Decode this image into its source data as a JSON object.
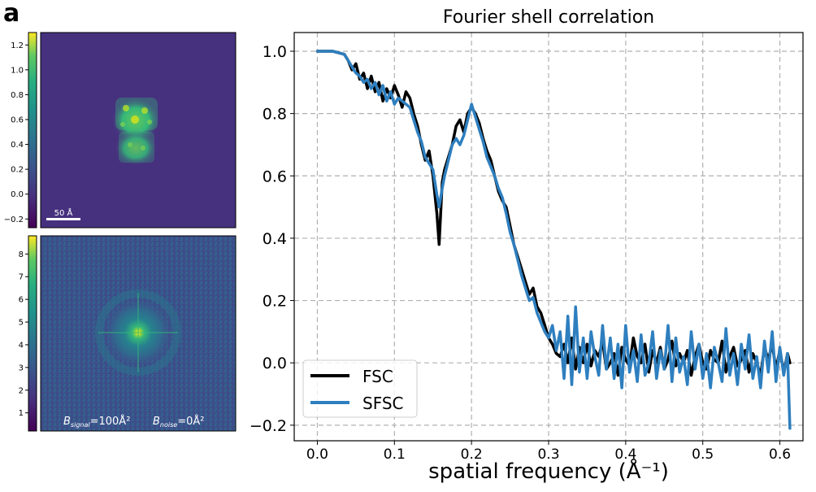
{
  "panel_label": "a",
  "realspace": {
    "colorbar_ticks": [
      "1.2",
      "1.0",
      "0.8",
      "0.6",
      "0.4",
      "0.2",
      "0.0",
      "−0.2"
    ],
    "colorbar_range": [
      -0.27,
      1.3
    ],
    "scalebar_label": "50 Å"
  },
  "fourier": {
    "colorbar_ticks": [
      "8",
      "7",
      "6",
      "5",
      "4",
      "3",
      "2",
      "1"
    ],
    "colorbar_range": [
      0.2,
      8.8
    ],
    "bsignal_symbol": "B",
    "bsignal_sub": "signal",
    "bsignal_value": "=100Å²",
    "bnoise_symbol": "B",
    "bnoise_sub": "noise",
    "bnoise_value": "=0Å²"
  },
  "colors": {
    "viridis_dark": "#440154",
    "viridis_bg": "#46317e",
    "viridis_yellow": "#fde725",
    "fsc": "#000000",
    "sfsc": "#2e7fbf",
    "grid": "#b0b0b0"
  },
  "chart_data": {
    "type": "line",
    "title": "Fourier shell correlation",
    "xlabel": "spatial frequency (Å⁻¹)",
    "xlim": [
      -0.03,
      0.63
    ],
    "ylim": [
      -0.25,
      1.06
    ],
    "xticks": [
      0.0,
      0.1,
      0.2,
      0.3,
      0.4,
      0.5,
      0.6
    ],
    "xtick_labels": [
      "0.0",
      "0.1",
      "0.2",
      "0.3",
      "0.4",
      "0.5",
      "0.6"
    ],
    "yticks": [
      1.0,
      0.8,
      0.6,
      0.4,
      0.2,
      0.0,
      -0.2
    ],
    "ytick_labels": [
      "1.0",
      "0.8",
      "0.6",
      "0.4",
      "0.2",
      "0.0",
      "−0.2"
    ],
    "grid": true,
    "legend_position": "bottom-left",
    "series": [
      {
        "name": "FSC",
        "color": "#000000",
        "x": [
          0.0,
          0.02,
          0.035,
          0.04,
          0.045,
          0.05,
          0.055,
          0.06,
          0.065,
          0.07,
          0.075,
          0.08,
          0.085,
          0.09,
          0.095,
          0.1,
          0.105,
          0.11,
          0.115,
          0.12,
          0.125,
          0.13,
          0.135,
          0.14,
          0.145,
          0.15,
          0.155,
          0.158,
          0.162,
          0.165,
          0.17,
          0.175,
          0.18,
          0.185,
          0.19,
          0.195,
          0.2,
          0.205,
          0.21,
          0.215,
          0.22,
          0.225,
          0.23,
          0.235,
          0.24,
          0.245,
          0.25,
          0.255,
          0.26,
          0.265,
          0.27,
          0.275,
          0.28,
          0.285,
          0.29,
          0.295,
          0.3,
          0.305,
          0.31,
          0.315,
          0.32,
          0.325,
          0.33,
          0.335,
          0.34,
          0.345,
          0.35,
          0.355,
          0.36,
          0.365,
          0.37,
          0.375,
          0.38,
          0.385,
          0.39,
          0.395,
          0.4,
          0.405,
          0.41,
          0.415,
          0.42,
          0.425,
          0.43,
          0.435,
          0.44,
          0.445,
          0.45,
          0.455,
          0.46,
          0.465,
          0.47,
          0.475,
          0.48,
          0.485,
          0.49,
          0.495,
          0.5,
          0.505,
          0.51,
          0.515,
          0.52,
          0.525,
          0.53,
          0.535,
          0.54,
          0.545,
          0.55,
          0.555,
          0.56,
          0.565,
          0.57,
          0.575,
          0.58,
          0.585,
          0.59,
          0.595,
          0.6,
          0.605,
          0.61,
          0.613
        ],
        "y": [
          1.0,
          1.0,
          0.99,
          0.97,
          0.94,
          0.96,
          0.91,
          0.93,
          0.88,
          0.92,
          0.87,
          0.9,
          0.84,
          0.88,
          0.85,
          0.89,
          0.86,
          0.82,
          0.87,
          0.85,
          0.8,
          0.76,
          0.7,
          0.65,
          0.68,
          0.6,
          0.48,
          0.38,
          0.58,
          0.62,
          0.66,
          0.7,
          0.76,
          0.78,
          0.74,
          0.8,
          0.82,
          0.8,
          0.77,
          0.72,
          0.68,
          0.65,
          0.6,
          0.55,
          0.52,
          0.5,
          0.44,
          0.38,
          0.34,
          0.3,
          0.26,
          0.22,
          0.24,
          0.18,
          0.16,
          0.12,
          0.08,
          0.06,
          0.03,
          0.02,
          0.06,
          0.0,
          0.08,
          -0.02,
          0.05,
          0.0,
          0.06,
          -0.01,
          0.04,
          0.02,
          0.07,
          -0.02,
          0.0,
          0.03,
          -0.04,
          0.05,
          0.01,
          -0.01,
          0.08,
          0.02,
          0.0,
          0.06,
          -0.03,
          0.04,
          0.0,
          0.05,
          -0.02,
          0.01,
          0.07,
          -0.01,
          0.03,
          0.0,
          0.04,
          -0.04,
          0.02,
          0.06,
          0.0,
          -0.02,
          0.04,
          0.01,
          0.0,
          0.07,
          -0.03,
          0.02,
          0.05,
          -0.01,
          0.01,
          0.04,
          -0.03,
          0.03,
          0.0,
          -0.04,
          0.05,
          0.01,
          0.06,
          -0.02,
          0.04,
          -0.03,
          0.03,
          0.0
        ]
      },
      {
        "name": "SFSC",
        "color": "#2e7fbf",
        "x": [
          0.0,
          0.02,
          0.035,
          0.04,
          0.045,
          0.05,
          0.055,
          0.06,
          0.065,
          0.07,
          0.075,
          0.08,
          0.085,
          0.09,
          0.095,
          0.1,
          0.105,
          0.11,
          0.115,
          0.12,
          0.125,
          0.13,
          0.135,
          0.14,
          0.145,
          0.15,
          0.155,
          0.158,
          0.162,
          0.165,
          0.17,
          0.175,
          0.18,
          0.185,
          0.19,
          0.195,
          0.2,
          0.205,
          0.21,
          0.215,
          0.22,
          0.225,
          0.23,
          0.235,
          0.24,
          0.245,
          0.25,
          0.255,
          0.26,
          0.265,
          0.27,
          0.275,
          0.28,
          0.285,
          0.29,
          0.295,
          0.3,
          0.305,
          0.31,
          0.315,
          0.32,
          0.325,
          0.33,
          0.335,
          0.34,
          0.345,
          0.35,
          0.355,
          0.36,
          0.365,
          0.37,
          0.375,
          0.38,
          0.385,
          0.39,
          0.395,
          0.4,
          0.405,
          0.41,
          0.415,
          0.42,
          0.425,
          0.43,
          0.435,
          0.44,
          0.445,
          0.45,
          0.455,
          0.46,
          0.465,
          0.47,
          0.475,
          0.48,
          0.485,
          0.49,
          0.495,
          0.5,
          0.505,
          0.51,
          0.515,
          0.52,
          0.525,
          0.53,
          0.535,
          0.54,
          0.545,
          0.55,
          0.555,
          0.56,
          0.565,
          0.57,
          0.575,
          0.58,
          0.585,
          0.59,
          0.595,
          0.6,
          0.605,
          0.61,
          0.613
        ],
        "y": [
          1.0,
          1.0,
          0.99,
          0.97,
          0.95,
          0.93,
          0.92,
          0.9,
          0.91,
          0.88,
          0.9,
          0.86,
          0.89,
          0.84,
          0.87,
          0.83,
          0.85,
          0.84,
          0.83,
          0.82,
          0.78,
          0.74,
          0.71,
          0.66,
          0.64,
          0.62,
          0.54,
          0.5,
          0.56,
          0.6,
          0.65,
          0.7,
          0.72,
          0.7,
          0.73,
          0.78,
          0.83,
          0.79,
          0.75,
          0.71,
          0.66,
          0.63,
          0.6,
          0.56,
          0.53,
          0.48,
          0.42,
          0.38,
          0.33,
          0.28,
          0.24,
          0.2,
          0.21,
          0.16,
          0.13,
          0.1,
          0.08,
          0.12,
          0.04,
          0.1,
          -0.05,
          0.15,
          -0.07,
          0.18,
          -0.03,
          0.08,
          -0.05,
          0.1,
          0.02,
          -0.04,
          0.12,
          -0.02,
          0.08,
          -0.05,
          0.06,
          -0.08,
          0.12,
          -0.03,
          0.04,
          -0.06,
          0.09,
          -0.04,
          0.0,
          0.1,
          -0.05,
          0.04,
          -0.02,
          0.12,
          -0.06,
          0.08,
          -0.03,
          0.02,
          -0.07,
          0.1,
          -0.02,
          0.06,
          -0.05,
          0.03,
          -0.08,
          0.05,
          0.0,
          -0.06,
          0.11,
          -0.04,
          0.03,
          -0.07,
          0.06,
          -0.02,
          0.09,
          -0.05,
          0.02,
          -0.08,
          0.07,
          -0.03,
          0.1,
          -0.06,
          0.05,
          -0.04,
          0.03,
          -0.21
        ]
      }
    ]
  }
}
